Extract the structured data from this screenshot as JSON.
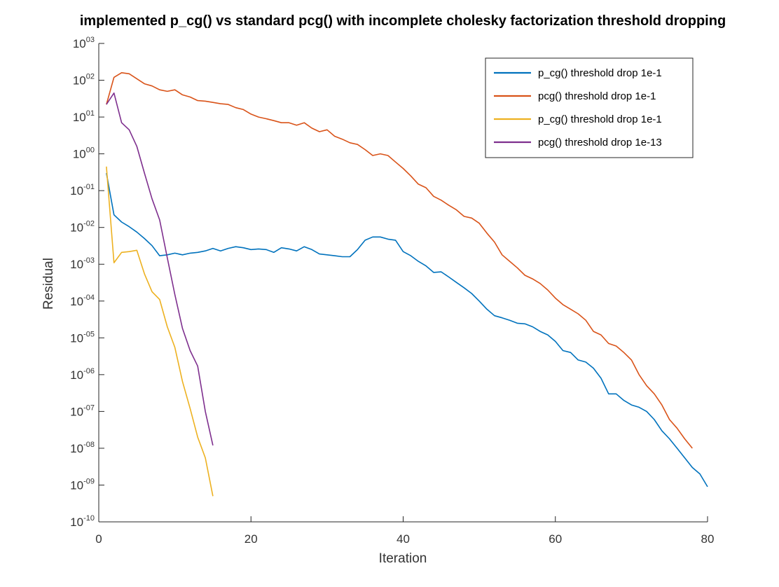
{
  "chart_data": {
    "type": "line",
    "title": "implemented p_cg() vs standard pcg() with incomplete cholesky factorization threshold dropping",
    "xlabel": "Iteration",
    "ylabel": "Residual",
    "xlim": [
      0,
      80
    ],
    "ylim": [
      1e-10,
      1000
    ],
    "yscale": "log",
    "grid": false,
    "legend_position": "top-right",
    "x_ticks": [
      "0",
      "20",
      "40",
      "60",
      "80"
    ],
    "y_ticks": [
      {
        "base": "10",
        "exp": "-10"
      },
      {
        "base": "10",
        "exp": "-09"
      },
      {
        "base": "10",
        "exp": "-08"
      },
      {
        "base": "10",
        "exp": "-07"
      },
      {
        "base": "10",
        "exp": "-06"
      },
      {
        "base": "10",
        "exp": "-05"
      },
      {
        "base": "10",
        "exp": "-04"
      },
      {
        "base": "10",
        "exp": "-03"
      },
      {
        "base": "10",
        "exp": "-02"
      },
      {
        "base": "10",
        "exp": "-01"
      },
      {
        "base": "10",
        "exp": "00"
      },
      {
        "base": "10",
        "exp": "01"
      },
      {
        "base": "10",
        "exp": "02"
      },
      {
        "base": "10",
        "exp": "03"
      }
    ],
    "series": [
      {
        "name": "p_cg() threshold drop 1e-1",
        "color": "#0072bd",
        "x": [
          1,
          2,
          3,
          4,
          5,
          6,
          7,
          8,
          9,
          10,
          11,
          12,
          13,
          14,
          15,
          16,
          17,
          18,
          19,
          20,
          21,
          22,
          23,
          24,
          25,
          26,
          27,
          28,
          29,
          30,
          31,
          32,
          33,
          34,
          35,
          36,
          37,
          38,
          39,
          40,
          41,
          42,
          43,
          44,
          45,
          46,
          47,
          48,
          49,
          50,
          51,
          52,
          53,
          54,
          55,
          56,
          57,
          58,
          59,
          60,
          61,
          62,
          63,
          64,
          65,
          66,
          67,
          68,
          69,
          70,
          71,
          72,
          73,
          74,
          75,
          76,
          77,
          78,
          79,
          80
        ],
        "y": [
          0.3,
          0.022,
          0.014,
          0.0105,
          0.0075,
          0.005,
          0.0032,
          0.0017,
          0.0018,
          0.002,
          0.0018,
          0.002,
          0.0021,
          0.0023,
          0.0027,
          0.0023,
          0.0027,
          0.003,
          0.0028,
          0.0025,
          0.0026,
          0.0025,
          0.0021,
          0.0028,
          0.0026,
          0.0023,
          0.003,
          0.0025,
          0.0019,
          0.0018,
          0.0017,
          0.0016,
          0.0016,
          0.0025,
          0.0045,
          0.0055,
          0.0055,
          0.0048,
          0.0045,
          0.0022,
          0.0017,
          0.0012,
          0.0009,
          0.0006,
          0.00062,
          0.00045,
          0.00032,
          0.00023,
          0.00016,
          0.0001,
          6e-05,
          4e-05,
          3.5e-05,
          3e-05,
          2.5e-05,
          2.4e-05,
          2e-05,
          1.5e-05,
          1.2e-05,
          8e-06,
          4.5e-06,
          4e-06,
          2.5e-06,
          2.2e-06,
          1.5e-06,
          8e-07,
          3e-07,
          3e-07,
          2e-07,
          1.5e-07,
          1.3e-07,
          1e-07,
          6e-08,
          3e-08,
          1.8e-08,
          1e-08,
          5.5e-09,
          3e-09,
          2e-09,
          9e-10
        ]
      },
      {
        "name": "pcg() threshold drop 1e-1",
        "color": "#d95319",
        "x": [
          1,
          2,
          3,
          4,
          5,
          6,
          7,
          8,
          9,
          10,
          11,
          12,
          13,
          14,
          15,
          16,
          17,
          18,
          19,
          20,
          21,
          22,
          23,
          24,
          25,
          26,
          27,
          28,
          29,
          30,
          31,
          32,
          33,
          34,
          35,
          36,
          37,
          38,
          39,
          40,
          41,
          42,
          43,
          44,
          45,
          46,
          47,
          48,
          49,
          50,
          51,
          52,
          53,
          54,
          55,
          56,
          57,
          58,
          59,
          60,
          61,
          62,
          63,
          64,
          65,
          66,
          67,
          68,
          69,
          70,
          71,
          72,
          73,
          74,
          75,
          76,
          77,
          78
        ],
        "y": [
          22,
          120,
          160,
          150,
          110,
          80,
          70,
          55,
          50,
          55,
          40,
          35,
          28,
          27,
          25,
          23,
          22,
          18,
          16,
          12,
          10,
          9,
          8,
          7,
          7,
          6,
          7,
          5,
          4,
          4.5,
          3,
          2.5,
          2,
          1.8,
          1.3,
          0.9,
          1,
          0.9,
          0.6,
          0.4,
          0.25,
          0.15,
          0.12,
          0.07,
          0.055,
          0.04,
          0.03,
          0.02,
          0.018,
          0.013,
          0.007,
          0.004,
          0.0018,
          0.0012,
          0.0008,
          0.0005,
          0.0004,
          0.0003,
          0.0002,
          0.00012,
          8e-05,
          6e-05,
          4.5e-05,
          3e-05,
          1.5e-05,
          1.2e-05,
          7e-06,
          6e-06,
          4e-06,
          2.5e-06,
          1e-06,
          5e-07,
          3e-07,
          1.5e-07,
          6e-08,
          3.5e-08,
          1.8e-08,
          1e-08
        ]
      },
      {
        "name": "p_cg() threshold drop 1e-1",
        "color": "#edb120",
        "x": [
          1,
          2,
          3,
          4,
          5,
          6,
          7,
          8,
          9,
          10,
          11,
          12,
          13,
          14,
          15
        ],
        "y": [
          0.45,
          0.0011,
          0.0021,
          0.0022,
          0.0024,
          0.00055,
          0.00018,
          0.00011,
          2e-05,
          5.5e-06,
          6.5e-07,
          1.2e-07,
          2e-08,
          5.5e-09,
          5e-10
        ]
      },
      {
        "name": "pcg() threshold drop 1e-13",
        "color": "#7e2f8e",
        "x": [
          1,
          2,
          3,
          4,
          5,
          6,
          7,
          8,
          9,
          10,
          11,
          12,
          13,
          14,
          15
        ],
        "y": [
          22,
          45,
          7,
          4.5,
          1.6,
          0.3,
          0.06,
          0.016,
          0.0015,
          0.00015,
          1.8e-05,
          4.5e-06,
          1.7e-06,
          1e-07,
          1.2e-08
        ]
      }
    ]
  }
}
